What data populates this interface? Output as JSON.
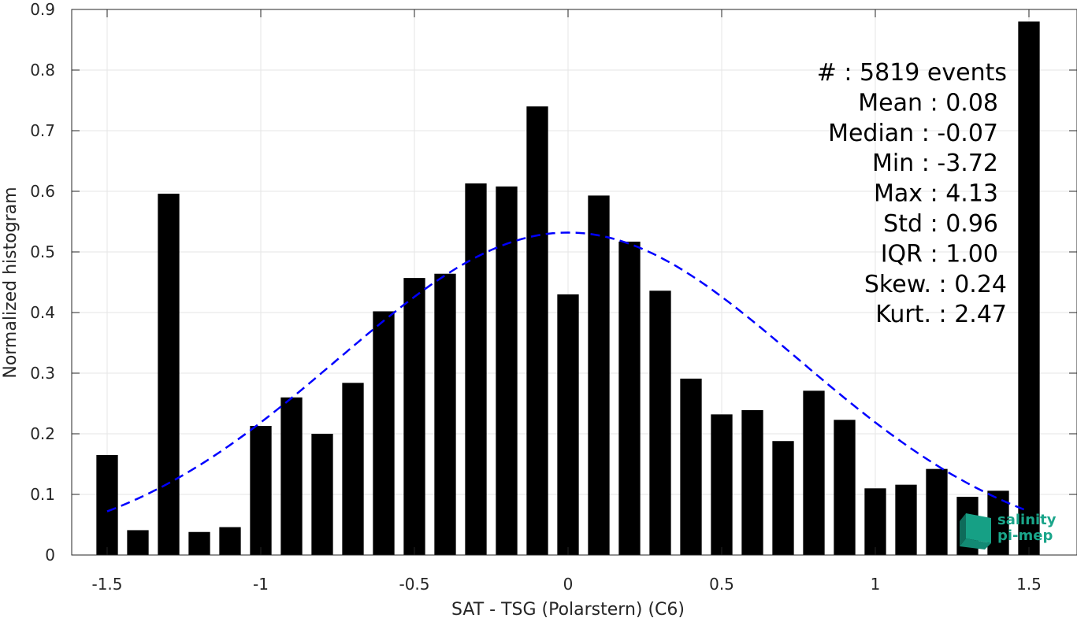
{
  "chart_data": {
    "type": "bar",
    "title": "",
    "xlabel": "SAT - TSG (Polarstern) (C6)",
    "ylabel": "Normalized histogram",
    "xlim": [
      -1.55,
      1.55
    ],
    "ylim": [
      0,
      0.9
    ],
    "x_ticks": [
      -1.5,
      -1,
      -0.5,
      0,
      0.5,
      1,
      1.5
    ],
    "x_tick_labels": [
      "-1.5",
      "-1",
      "-0.5",
      "0",
      "0.5",
      "1",
      "1.5"
    ],
    "y_ticks": [
      0,
      0.1,
      0.2,
      0.3,
      0.4,
      0.5,
      0.6,
      0.7,
      0.8,
      0.9
    ],
    "y_tick_labels": [
      "0",
      "0.1",
      "0.2",
      "0.3",
      "0.4",
      "0.5",
      "0.6",
      "0.7",
      "0.8",
      "0.9"
    ],
    "grid": true,
    "bin_centers": [
      -1.5,
      -1.4,
      -1.3,
      -1.2,
      -1.1,
      -1.0,
      -0.9,
      -0.8,
      -0.7,
      -0.6,
      -0.5,
      -0.4,
      -0.3,
      -0.2,
      -0.1,
      0.0,
      0.1,
      0.2,
      0.3,
      0.4,
      0.5,
      0.6,
      0.7,
      0.8,
      0.9,
      1.0,
      1.1,
      1.2,
      1.3,
      1.4,
      1.5
    ],
    "values": [
      0.165,
      0.041,
      0.596,
      0.038,
      0.046,
      0.213,
      0.26,
      0.2,
      0.284,
      0.402,
      0.457,
      0.464,
      0.613,
      0.608,
      0.74,
      0.43,
      0.593,
      0.517,
      0.436,
      0.291,
      0.232,
      0.239,
      0.188,
      0.271,
      0.223,
      0.11,
      0.116,
      0.142,
      0.096,
      0.106,
      0.88
    ],
    "bar_color": "#000000",
    "fit_curve": {
      "style": "dashed",
      "color": "#0000ff",
      "mean": 0.0,
      "std": 0.75,
      "x_range": [
        -1.5,
        1.5
      ]
    },
    "annotations": [
      "#  : 5819 events",
      "Mean : 0.08",
      "Median : -0.07",
      "Min : -3.72",
      "Max : 4.13",
      "Std : 0.96",
      "IQR : 1.00",
      "Skew. : 0.24",
      "Kurt. : 2.47"
    ]
  },
  "logo": {
    "line1": "salinity",
    "line2": "pi-mep",
    "color": "#1aa58a"
  }
}
